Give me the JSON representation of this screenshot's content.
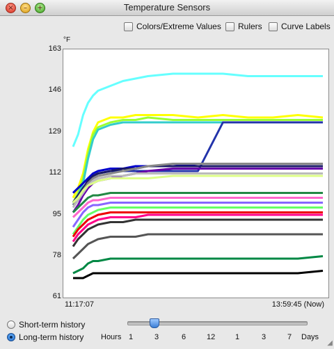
{
  "window": {
    "title": "Temperature Sensors",
    "close_glyph": "×",
    "minimize_glyph": "–",
    "zoom_glyph": "+"
  },
  "options": [
    {
      "label": "Colors/Extreme Values",
      "checked": false
    },
    {
      "label": "Rulers",
      "checked": false
    },
    {
      "label": "Curve Labels",
      "checked": false
    }
  ],
  "chart_data": {
    "type": "line",
    "y_unit": "°F",
    "ylim": [
      61,
      163
    ],
    "y_ticks": [
      163,
      146,
      129,
      112,
      95,
      78,
      61
    ],
    "x_start_label": "11:17:07",
    "x_end_label": "13:59:45 (Now)",
    "grid": false,
    "legend": "none",
    "x": [
      0,
      2,
      4,
      6,
      8,
      10,
      15,
      20,
      25,
      30,
      40,
      50,
      60,
      70,
      80,
      90,
      100
    ],
    "series": [
      {
        "color": "#66ffff",
        "values": [
          123,
          128,
          136,
          141,
          144,
          146,
          148,
          150,
          151,
          152,
          153,
          153,
          153,
          152,
          152,
          152,
          152
        ]
      },
      {
        "color": "#ffff00",
        "values": [
          102,
          106,
          112,
          122,
          129,
          133,
          135,
          135,
          136,
          136,
          136,
          135,
          136,
          135,
          135,
          136,
          135
        ]
      },
      {
        "color": "#9aff33",
        "values": [
          100,
          104,
          110,
          120,
          128,
          131,
          133,
          134,
          134,
          135,
          134,
          134,
          134,
          134,
          134,
          134,
          134
        ]
      },
      {
        "color": "#33cccc",
        "values": [
          99,
          103,
          108,
          118,
          126,
          130,
          132,
          133,
          133,
          133,
          133,
          133,
          133,
          133,
          133,
          133,
          133
        ]
      },
      {
        "color": "#2233aa",
        "values": [
          99,
          101,
          104,
          108,
          111,
          112,
          113,
          113,
          113,
          113,
          113,
          113,
          133,
          133,
          133,
          133,
          133
        ]
      },
      {
        "color": "#0000cc",
        "values": [
          104,
          106,
          108,
          110,
          112,
          113,
          114,
          114,
          115,
          115,
          115,
          116,
          116,
          116,
          116,
          116,
          116
        ]
      },
      {
        "color": "#1a1a66",
        "values": [
          100,
          103,
          106,
          109,
          111,
          112,
          113,
          114,
          114,
          115,
          115,
          115,
          115,
          115,
          115,
          115,
          115
        ]
      },
      {
        "color": "#888888",
        "values": [
          99,
          102,
          105,
          108,
          110,
          111,
          112,
          113,
          114,
          115,
          116,
          116,
          116,
          116,
          116,
          116,
          116
        ]
      },
      {
        "color": "#6600aa",
        "values": [
          96,
          99,
          103,
          106,
          108,
          109,
          110,
          111,
          112,
          113,
          114,
          114,
          114,
          114,
          114,
          114,
          114
        ]
      },
      {
        "color": "#bbbbbb",
        "values": [
          98,
          101,
          104,
          107,
          109,
          110,
          111,
          111,
          112,
          112,
          112,
          112,
          112,
          112,
          112,
          112,
          112
        ]
      },
      {
        "color": "#ddff88",
        "values": [
          100,
          102,
          105,
          107,
          108,
          109,
          110,
          110,
          110,
          110,
          111,
          111,
          111,
          111,
          111,
          111,
          111
        ]
      },
      {
        "color": "#228844",
        "values": [
          96,
          98,
          100,
          102,
          103,
          103,
          104,
          104,
          104,
          104,
          104,
          104,
          104,
          104,
          104,
          104,
          104
        ]
      },
      {
        "color": "#ff66cc",
        "values": [
          94,
          96,
          98,
          100,
          101,
          101,
          102,
          102,
          102,
          102,
          102,
          102,
          102,
          102,
          102,
          102,
          102
        ]
      },
      {
        "color": "#8866ff",
        "values": [
          90,
          93,
          96,
          98,
          99,
          99,
          100,
          100,
          100,
          100,
          100,
          100,
          100,
          100,
          100,
          100,
          100
        ]
      },
      {
        "color": "#66ff66",
        "values": [
          87,
          90,
          93,
          95,
          96,
          97,
          98,
          98,
          98,
          98,
          98,
          98,
          98,
          98,
          98,
          98,
          98
        ]
      },
      {
        "color": "#ee0000",
        "values": [
          86,
          89,
          91,
          93,
          94,
          95,
          96,
          96,
          96,
          96,
          96,
          96,
          96,
          96,
          96,
          96,
          96
        ]
      },
      {
        "color": "#ff0088",
        "values": [
          84,
          87,
          89,
          91,
          92,
          93,
          94,
          94,
          94,
          95,
          95,
          95,
          95,
          95,
          95,
          95,
          95
        ]
      },
      {
        "color": "#333333",
        "values": [
          82,
          85,
          87,
          89,
          90,
          91,
          92,
          92,
          93,
          93,
          93,
          93,
          93,
          93,
          93,
          93,
          93
        ]
      },
      {
        "color": "#555555",
        "values": [
          77,
          79,
          81,
          83,
          84,
          85,
          86,
          86,
          86,
          87,
          87,
          87,
          87,
          87,
          87,
          87,
          87
        ]
      },
      {
        "color": "#008844",
        "values": [
          71,
          72,
          73,
          75,
          76,
          76,
          77,
          77,
          77,
          77,
          77,
          77,
          77,
          77,
          77,
          77,
          78
        ]
      },
      {
        "color": "#000000",
        "values": [
          69,
          69,
          69,
          70,
          71,
          71,
          71,
          71,
          71,
          71,
          71,
          71,
          71,
          71,
          71,
          71,
          72
        ]
      }
    ]
  },
  "history": {
    "short_label": "Short-term history",
    "long_label": "Long-term history",
    "selected": "long"
  },
  "time_scale": {
    "left_label": "Hours",
    "ticks": [
      "1",
      "3",
      "6",
      "12",
      "1",
      "3",
      "7"
    ],
    "right_label": "Days",
    "selected_index": 1
  }
}
